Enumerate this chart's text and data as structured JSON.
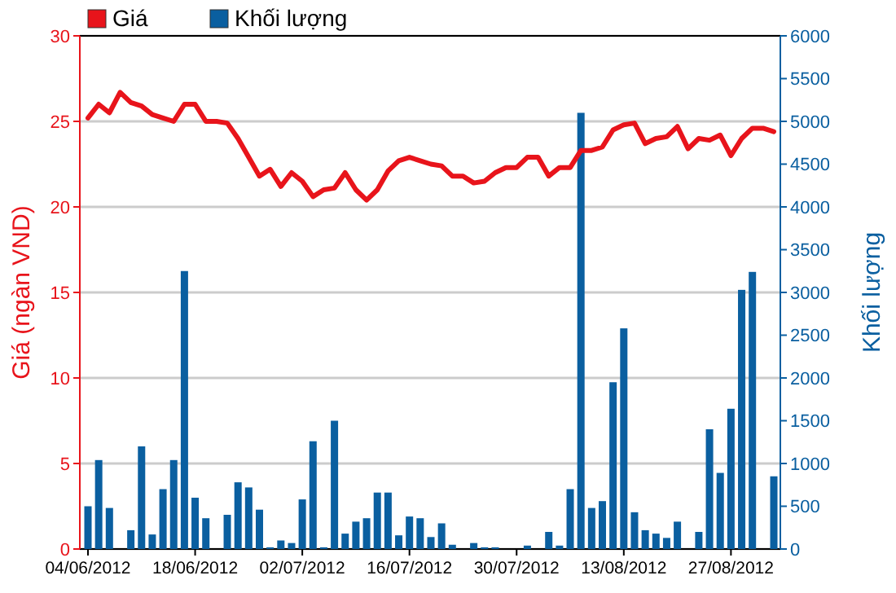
{
  "chart_data": {
    "type": "bar",
    "categories": [
      "04/06/2012",
      null,
      null,
      null,
      null,
      null,
      null,
      null,
      null,
      null,
      "18/06/2012",
      null,
      null,
      null,
      null,
      null,
      null,
      null,
      null,
      null,
      "02/07/2012",
      null,
      null,
      null,
      null,
      null,
      null,
      null,
      null,
      null,
      "16/07/2012",
      null,
      null,
      null,
      null,
      null,
      null,
      null,
      null,
      null,
      "30/07/2012",
      null,
      null,
      null,
      null,
      null,
      null,
      null,
      null,
      null,
      "13/08/2012",
      null,
      null,
      null,
      null,
      null,
      null,
      null,
      null,
      null,
      "27/08/2012",
      null,
      null,
      null,
      null
    ],
    "ylabel": "Giá (ngàn VND)",
    "y2label": "Khối lượng",
    "ylim": [
      0,
      30
    ],
    "yticks": [
      0,
      5,
      10,
      15,
      20,
      25,
      30
    ],
    "y2lim": [
      0,
      6000
    ],
    "y2ticks": [
      0,
      500,
      1000,
      1500,
      2000,
      2500,
      3000,
      3500,
      4000,
      4500,
      5000,
      5500,
      6000
    ],
    "grid": "y",
    "legend": "top left",
    "series": [
      {
        "name": "Giá",
        "type": "line",
        "color": "#e8141b",
        "values": [
          25.2,
          26.0,
          25.5,
          26.7,
          26.1,
          25.9,
          25.4,
          25.2,
          25.0,
          26.0,
          26.0,
          25.0,
          25.0,
          24.9,
          24.0,
          22.9,
          21.8,
          22.2,
          21.2,
          22.0,
          21.5,
          20.6,
          21.0,
          21.1,
          22.0,
          21.0,
          20.4,
          21.0,
          22.1,
          22.7,
          22.9,
          22.7,
          22.5,
          22.4,
          21.8,
          21.8,
          21.4,
          21.5,
          22.0,
          22.3,
          22.3,
          22.9,
          22.9,
          21.8,
          22.3,
          22.3,
          23.3,
          23.3,
          23.5,
          24.5,
          24.8,
          24.9,
          23.7,
          24.0,
          24.1,
          24.7,
          23.4,
          24.0,
          23.9,
          24.2,
          23.0,
          24.0,
          24.6,
          24.6,
          24.4
        ]
      },
      {
        "name": "Khối lượng",
        "axis": "y2",
        "color": "#0a5fa0",
        "values": [
          500,
          1040,
          480,
          null,
          220,
          1200,
          170,
          700,
          1040,
          3250,
          600,
          360,
          null,
          400,
          780,
          720,
          460,
          20,
          100,
          70,
          580,
          1260,
          20,
          1500,
          180,
          320,
          360,
          660,
          660,
          160,
          380,
          360,
          140,
          300,
          50,
          null,
          70,
          20,
          20,
          null,
          null,
          40,
          null,
          200,
          40,
          700,
          5100,
          480,
          560,
          1950,
          2580,
          430,
          220,
          180,
          130,
          320,
          null,
          200,
          1400,
          890,
          1640,
          3030,
          3240,
          null,
          850
        ]
      }
    ]
  }
}
